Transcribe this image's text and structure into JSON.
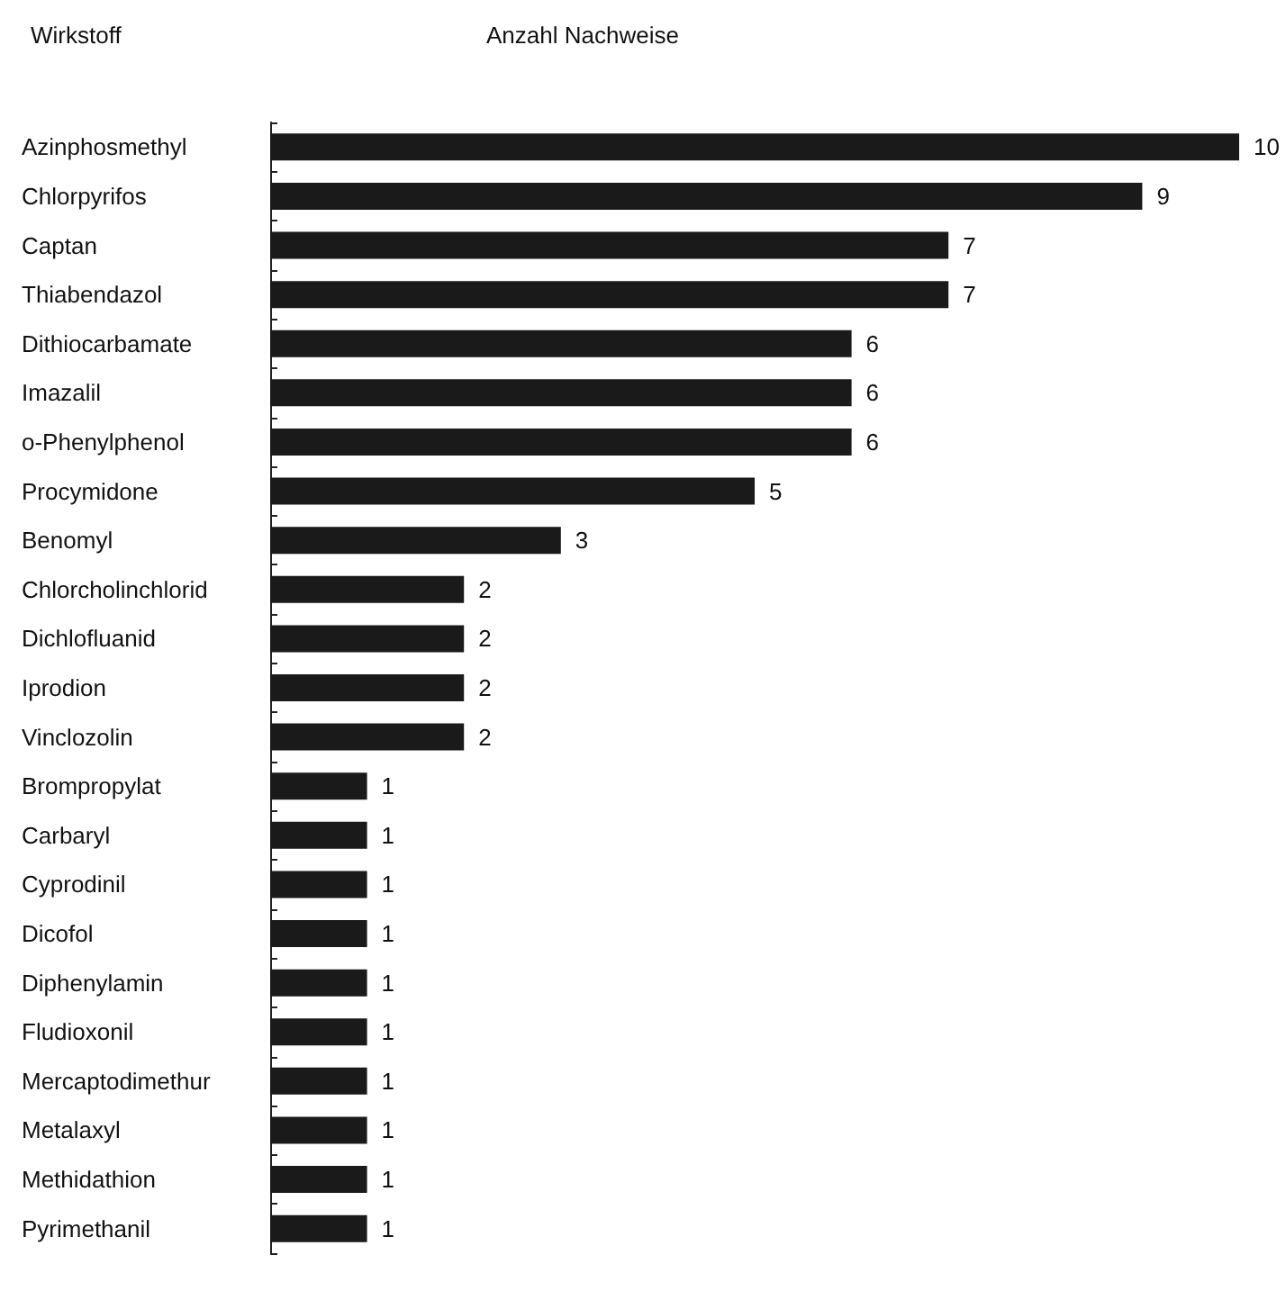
{
  "chart_data": {
    "type": "bar",
    "orientation": "horizontal",
    "xlabel": "Anzahl Nachweise",
    "ylabel": "Wirkstoff",
    "categories": [
      "Azinphosmethyl",
      "Chlorpyrifos",
      "Captan",
      "Thiabendazol",
      "Dithiocarbamate",
      "Imazalil",
      "o-Phenylphenol",
      "Procymidone",
      "Benomyl",
      "Chlorcholinchlorid",
      "Dichlofluanid",
      "Iprodion",
      "Vinclozolin",
      "Brompropylat",
      "Carbaryl",
      "Cyprodinil",
      "Dicofol",
      "Diphenylamin",
      "Fludioxonil",
      "Mercaptodimethur",
      "Metalaxyl",
      "Methidathion",
      "Pyrimethanil"
    ],
    "values": [
      10,
      9,
      7,
      7,
      6,
      6,
      6,
      5,
      3,
      2,
      2,
      2,
      2,
      1,
      1,
      1,
      1,
      1,
      1,
      1,
      1,
      1,
      1
    ],
    "color": "#1a1a1a",
    "data_labels": true
  }
}
